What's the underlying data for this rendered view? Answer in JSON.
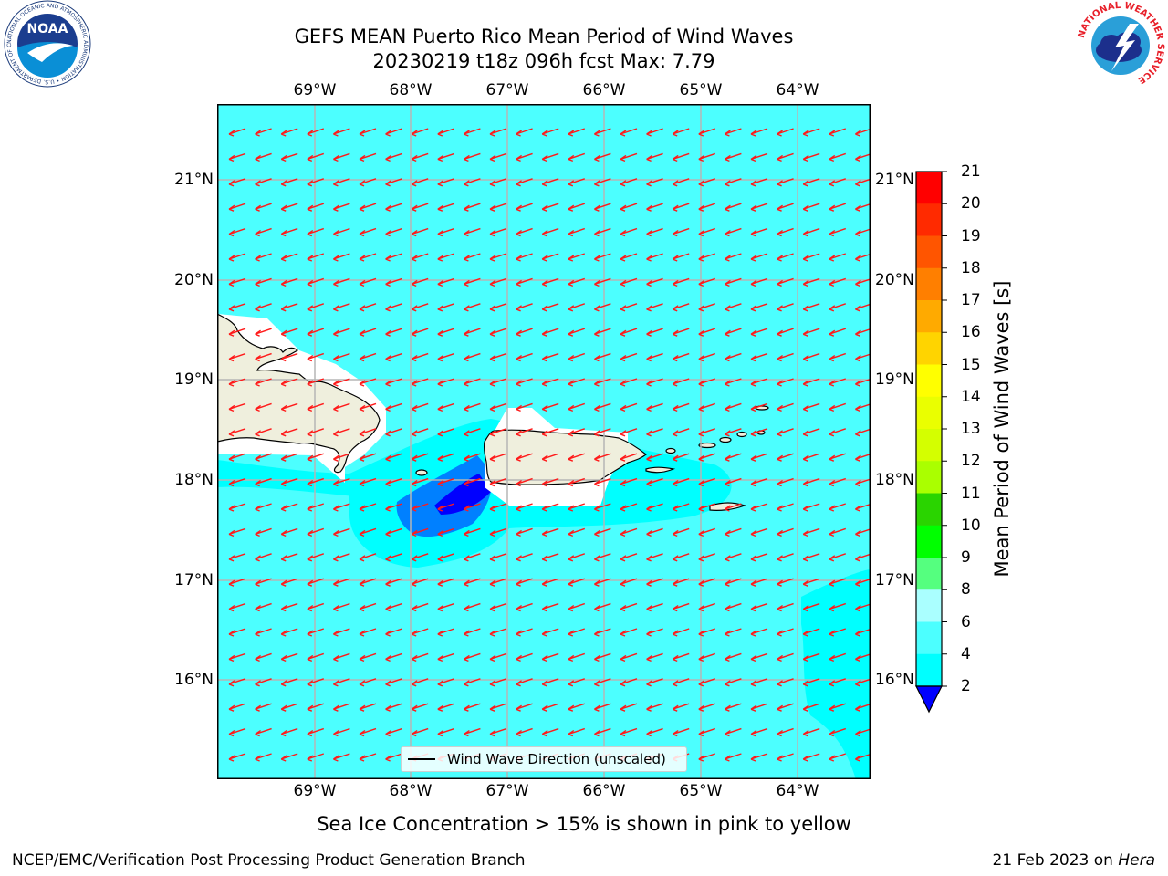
{
  "header": {
    "title_line1": "GEFS MEAN Puerto Rico Mean Period of Wind Waves",
    "title_line2": "20230219 t18z 096h fcst   Max: 7.79"
  },
  "logos": {
    "left": "NOAA",
    "left_ring_text": "NATIONAL OCEANIC AND ATMOSPHERIC ADMINISTRATION • U.S. DEPARTMENT OF COMMERCE",
    "right_ring_text": "NATIONAL WEATHER SERVICE"
  },
  "map": {
    "lon_ticks": [
      "69°W",
      "68°W",
      "67°W",
      "66°W",
      "65°W",
      "64°W"
    ],
    "lat_ticks": [
      "21°N",
      "20°N",
      "19°N",
      "18°N",
      "17°N",
      "16°N"
    ],
    "lon_values": [
      -69,
      -68,
      -67,
      -66,
      -65,
      -64
    ],
    "lat_values": [
      21,
      20,
      19,
      18,
      17,
      16
    ],
    "extent": {
      "lon_min": -70.0,
      "lon_max": -63.25,
      "lat_min": 15.0,
      "lat_max": 21.75
    },
    "background_field_color": "#4cffff",
    "arrow_color": "#ff1a1a",
    "vector_direction": "toward southwest",
    "legend_label": "Wind Wave Direction (unscaled)"
  },
  "colorbar": {
    "label": "Mean Period of Wind Waves [s]",
    "ticks": [
      "21",
      "20",
      "19",
      "18",
      "17",
      "16",
      "15",
      "14",
      "13",
      "12",
      "11",
      "10",
      "9",
      "8",
      "6",
      "4",
      "2"
    ],
    "colors": [
      "#ff0000",
      "#ff2a00",
      "#ff5500",
      "#ff7f00",
      "#ffaa00",
      "#ffd400",
      "#ffff00",
      "#eaff00",
      "#d4ff00",
      "#aaff00",
      "#2ad400",
      "#00ff00",
      "#55ff7f",
      "#aaffff",
      "#4cffff",
      "#00ffff",
      "#0080ff",
      "#0000ff"
    ],
    "extend": "min"
  },
  "notes": {
    "sea_ice": "Sea Ice Concentration > 15% is shown in pink to yellow"
  },
  "footer": {
    "left": "NCEP/EMC/Verification Post Processing Product Generation Branch",
    "date": "21 Feb 2023 on",
    "host": "Hera"
  }
}
